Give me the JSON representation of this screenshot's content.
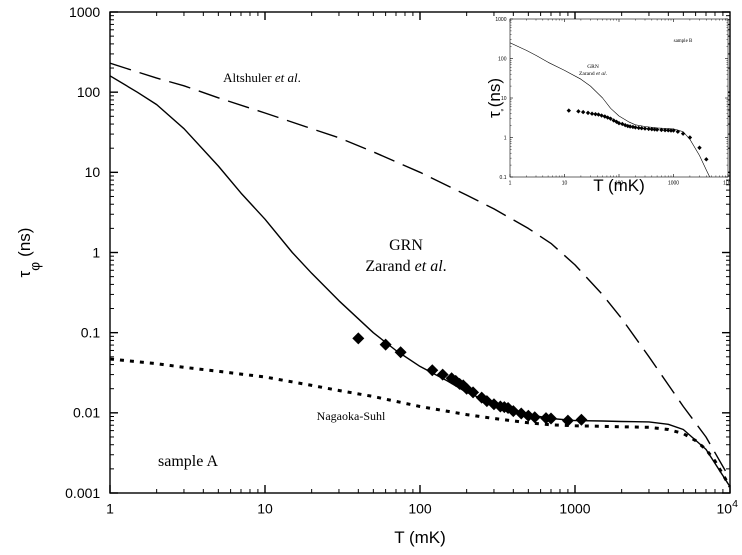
{
  "chart_data": [
    {
      "type": "scatter",
      "title": "",
      "xlabel": "T (mK)",
      "ylabel": "τ_φ (ns)",
      "ylabel_main": "τ",
      "ylabel_sub": "φ",
      "ylabel_unit": "(ns)",
      "xscale": "log",
      "yscale": "log",
      "xlim": [
        1,
        10000
      ],
      "ylim": [
        0.001,
        1000
      ],
      "x_ticks": [
        {
          "value": 1,
          "label": "1"
        },
        {
          "value": 10,
          "label": "10"
        },
        {
          "value": 100,
          "label": "100"
        },
        {
          "value": 1000,
          "label": "1000"
        }
      ],
      "x_tick_last": {
        "value": 10000,
        "base": "10",
        "exp": "4"
      },
      "y_ticks": [
        {
          "value": 1000,
          "label": "1000"
        },
        {
          "value": 100,
          "label": "100"
        },
        {
          "value": 10,
          "label": "10"
        },
        {
          "value": 1,
          "label": "1"
        },
        {
          "value": 0.1,
          "label": "0.1"
        },
        {
          "value": 0.01,
          "label": "0.01"
        },
        {
          "value": 0.001,
          "label": "0.001"
        }
      ],
      "grid": false,
      "series": [
        {
          "name": "GRN Zarand et al.",
          "style": "solid",
          "color": "#000000",
          "x": [
            1,
            1.5,
            2,
            3,
            5,
            7,
            10,
            15,
            20,
            30,
            50,
            70,
            100,
            150,
            200,
            300,
            400,
            500,
            700,
            1000,
            1500,
            2000,
            3000,
            4000,
            5000,
            7000,
            10000
          ],
          "y": [
            160,
            100,
            70,
            35,
            12,
            5.5,
            2.6,
            1.0,
            0.55,
            0.25,
            0.1,
            0.06,
            0.038,
            0.025,
            0.018,
            0.013,
            0.011,
            0.0095,
            0.0085,
            0.008,
            0.0079,
            0.0078,
            0.0077,
            0.0072,
            0.0062,
            0.0035,
            0.0012
          ]
        },
        {
          "name": "Altshuler et al.",
          "style": "dashed",
          "color": "#000000",
          "x": [
            1,
            2,
            3,
            5,
            10,
            20,
            30,
            50,
            100,
            200,
            300,
            500,
            700,
            1000,
            1500,
            2000,
            3000,
            5000,
            7000,
            10000
          ],
          "y": [
            230,
            150,
            120,
            85,
            55,
            35,
            27,
            18,
            10,
            5.2,
            3.5,
            2.0,
            1.3,
            0.7,
            0.3,
            0.15,
            0.05,
            0.012,
            0.005,
            0.0015
          ]
        },
        {
          "name": "Nagaoka-Suhl",
          "style": "dotted",
          "color": "#000000",
          "x": [
            1,
            2,
            3,
            5,
            10,
            20,
            30,
            50,
            100,
            200,
            300,
            500,
            700,
            1000,
            1500,
            2000,
            3000,
            4000,
            5000,
            6000,
            7000,
            8000,
            10000
          ],
          "y": [
            0.047,
            0.041,
            0.037,
            0.033,
            0.028,
            0.022,
            0.019,
            0.016,
            0.012,
            0.0095,
            0.0085,
            0.0075,
            0.0071,
            0.0069,
            0.0068,
            0.0067,
            0.0066,
            0.0062,
            0.0055,
            0.0045,
            0.0035,
            0.0025,
            0.0012
          ]
        },
        {
          "name": "sample A data",
          "style": "markers",
          "marker": "diamond",
          "color": "#000000",
          "x": [
            40,
            60,
            75,
            120,
            140,
            160,
            170,
            180,
            190,
            200,
            220,
            250,
            270,
            300,
            330,
            350,
            370,
            400,
            450,
            500,
            550,
            650,
            700,
            900,
            1100
          ],
          "y": [
            0.085,
            0.071,
            0.057,
            0.034,
            0.03,
            0.027,
            0.025,
            0.023,
            0.022,
            0.02,
            0.018,
            0.0155,
            0.014,
            0.0128,
            0.012,
            0.0118,
            0.0115,
            0.0105,
            0.0098,
            0.0092,
            0.0088,
            0.0086,
            0.0085,
            0.008,
            0.0082
          ]
        }
      ],
      "annotations": [
        {
          "id": "altshuler",
          "parts": [
            {
              "text": "Altshuler ",
              "italic": false
            },
            {
              "text": "et al",
              "italic": true
            },
            {
              "text": ".",
              "italic": false
            }
          ]
        },
        {
          "id": "grn",
          "parts": [
            {
              "text": "GRN",
              "italic": false
            }
          ]
        },
        {
          "id": "zarand",
          "parts": [
            {
              "text": "Zarand ",
              "italic": false
            },
            {
              "text": "et al",
              "italic": true
            },
            {
              "text": ".",
              "italic": false
            }
          ]
        },
        {
          "id": "nagaoka",
          "parts": [
            {
              "text": "Nagaoka-Suhl",
              "italic": false
            }
          ]
        },
        {
          "id": "sample",
          "parts": [
            {
              "text": "sample A",
              "italic": false
            }
          ]
        }
      ]
    },
    {
      "type": "scatter",
      "title": "",
      "xlabel": "T (mK)",
      "ylabel": "τ_φ (ns)",
      "ylabel_main": "τ",
      "ylabel_sub": "φ",
      "ylabel_unit": "(ns)",
      "xscale": "log",
      "yscale": "log",
      "xlim": [
        1,
        10000
      ],
      "ylim": [
        0.1,
        1000
      ],
      "x_ticks": [
        {
          "value": 1,
          "label": "1"
        },
        {
          "value": 10,
          "label": "10"
        },
        {
          "value": 100,
          "label": "100"
        },
        {
          "value": 1000,
          "label": "1000"
        }
      ],
      "x_tick_last": {
        "value": 10000,
        "base": "10",
        "exp": "4"
      },
      "y_ticks": [
        {
          "value": 1000,
          "label": "1000"
        },
        {
          "value": 100,
          "label": "100"
        },
        {
          "value": 10,
          "label": "10"
        },
        {
          "value": 1,
          "label": "1"
        },
        {
          "value": 0.1,
          "label": "0.1"
        }
      ],
      "grid": false,
      "series": [
        {
          "name": "GRN Zarand et al.",
          "style": "solid",
          "color": "#000000",
          "x": [
            1,
            2,
            3,
            5,
            10,
            20,
            30,
            50,
            70,
            100,
            150,
            200,
            300,
            500,
            700,
            1000,
            1500,
            2000,
            3000,
            4000,
            5000
          ],
          "y": [
            250,
            160,
            120,
            80,
            50,
            30,
            20,
            10,
            5.5,
            3.5,
            2.5,
            2.1,
            1.9,
            1.75,
            1.7,
            1.65,
            1.4,
            0.9,
            0.35,
            0.15,
            0.08
          ]
        },
        {
          "name": "sample B data",
          "style": "markers",
          "marker": "diamond",
          "color": "#000000",
          "x": [
            12,
            18,
            22,
            27,
            32,
            37,
            42,
            48,
            55,
            62,
            70,
            80,
            90,
            100,
            115,
            130,
            145,
            160,
            180,
            200,
            230,
            260,
            300,
            350,
            400,
            450,
            500,
            600,
            700,
            800,
            900,
            1000,
            1200,
            1500,
            2000,
            3000,
            4000
          ],
          "y": [
            4.8,
            4.6,
            4.4,
            4.2,
            4.0,
            3.9,
            3.8,
            3.6,
            3.4,
            3.2,
            3.0,
            2.7,
            2.5,
            2.3,
            2.2,
            2.05,
            1.95,
            1.9,
            1.85,
            1.8,
            1.75,
            1.72,
            1.68,
            1.65,
            1.62,
            1.6,
            1.58,
            1.55,
            1.53,
            1.52,
            1.5,
            1.5,
            1.4,
            1.25,
            1.0,
            0.55,
            0.28
          ]
        }
      ],
      "annotations": [
        {
          "id": "grn",
          "parts": [
            {
              "text": "GRN",
              "italic": false
            }
          ]
        },
        {
          "id": "zarand",
          "parts": [
            {
              "text": "Zarand ",
              "italic": false
            },
            {
              "text": "et al",
              "italic": true
            },
            {
              "text": ".",
              "italic": false
            }
          ]
        },
        {
          "id": "sample",
          "parts": [
            {
              "text": "sample B",
              "italic": false
            }
          ]
        }
      ]
    }
  ]
}
